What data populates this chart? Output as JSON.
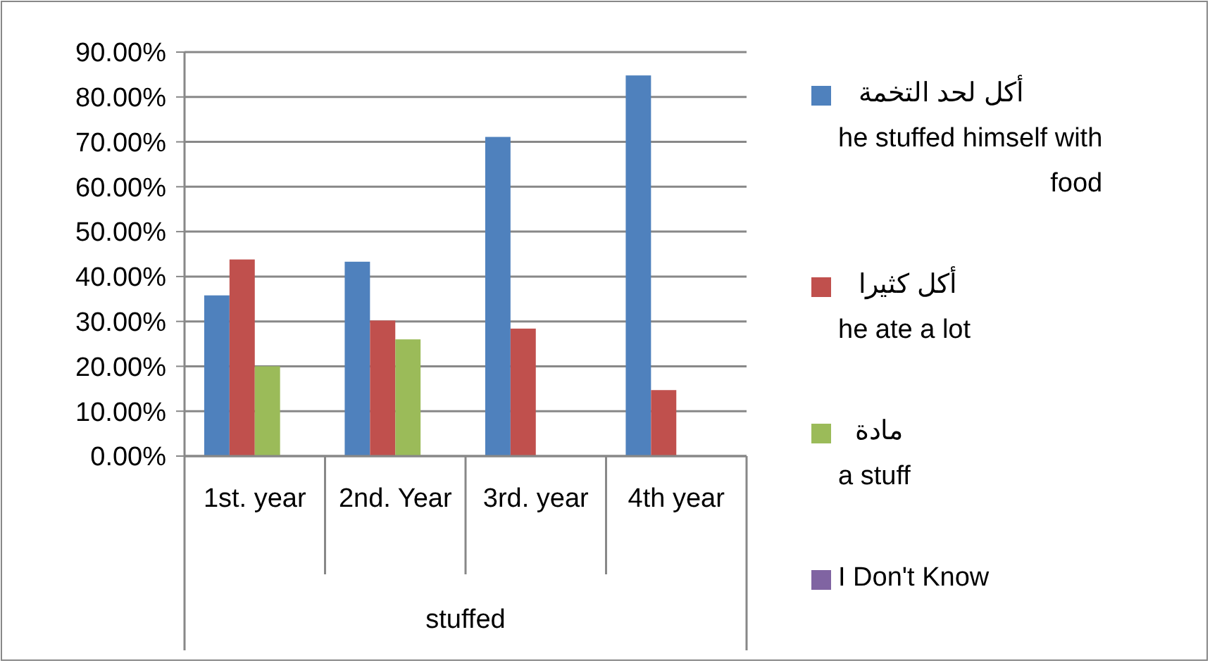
{
  "chart_data": {
    "type": "bar",
    "xlabel": "stuffed",
    "categories": [
      "1st. year",
      "2nd. Year",
      "3rd. year",
      "4th year"
    ],
    "series": [
      {
        "name": "أكل لحد التخمة\nhe stuffed himself with food",
        "color": "#4f81bd",
        "values": [
          35.8,
          43.3,
          71.1,
          84.8
        ]
      },
      {
        "name": "أكل كثيرا\nhe ate a lot",
        "color": "#c0504d",
        "values": [
          43.8,
          30.2,
          28.4,
          14.7
        ]
      },
      {
        "name": "مادة\na stuff",
        "color": "#9bbb59",
        "values": [
          20,
          26,
          null,
          null
        ]
      },
      {
        "name": "I Don't Know",
        "color": "#8064a2",
        "values": [
          null,
          null,
          null,
          null
        ]
      }
    ],
    "ylim": [
      0,
      90
    ],
    "yticks": [
      {
        "value": 0,
        "label": "0.00%"
      },
      {
        "value": 10,
        "label": "10.00%"
      },
      {
        "value": 20,
        "label": "20.00%"
      },
      {
        "value": 30,
        "label": "30.00%"
      },
      {
        "value": 40,
        "label": "40.00%"
      },
      {
        "value": 50,
        "label": "50.00%"
      },
      {
        "value": 60,
        "label": "60.00%"
      },
      {
        "value": 70,
        "label": "70.00%"
      },
      {
        "value": 80,
        "label": "80.00%"
      },
      {
        "value": 90,
        "label": "90.00%"
      }
    ],
    "grid": "y",
    "legend": "right"
  }
}
